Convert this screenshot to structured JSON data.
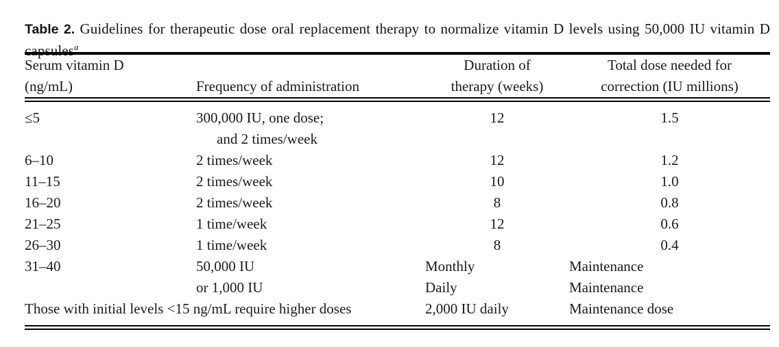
{
  "caption": {
    "label": "Table 2.",
    "text": "Guidelines for therapeutic dose oral replacement therapy to normalize vitamin D levels using 50,000 IU vitamin D capsules",
    "footnote_marker": "a"
  },
  "table": {
    "headers": [
      {
        "lines": [
          "Serum vitamin D",
          "(ng/mL)"
        ],
        "align": "left",
        "valign": "top"
      },
      {
        "lines": [
          "Frequency of administration"
        ],
        "align": "left",
        "valign": "bottom"
      },
      {
        "lines": [
          "Duration of",
          "therapy (weeks)"
        ],
        "align": "center",
        "valign": "top"
      },
      {
        "lines": [
          "Total dose needed for",
          "correction (IU millions)"
        ],
        "align": "center",
        "valign": "top"
      }
    ],
    "rows": [
      {
        "cells": [
          {
            "lines": [
              {
                "t": "≤5"
              }
            ]
          },
          {
            "lines": [
              {
                "t": "300,000 IU, one dose;"
              },
              {
                "t": "and 2 times/week",
                "indent": true
              }
            ]
          },
          {
            "lines": [
              {
                "t": "12"
              }
            ],
            "align": "center"
          },
          {
            "lines": [
              {
                "t": "1.5"
              }
            ],
            "align": "center"
          }
        ]
      },
      {
        "cells": [
          {
            "lines": [
              {
                "t": "6–10"
              }
            ]
          },
          {
            "lines": [
              {
                "t": "2 times/week"
              }
            ]
          },
          {
            "lines": [
              {
                "t": "12"
              }
            ],
            "align": "center"
          },
          {
            "lines": [
              {
                "t": "1.2"
              }
            ],
            "align": "center"
          }
        ]
      },
      {
        "cells": [
          {
            "lines": [
              {
                "t": "11–15"
              }
            ]
          },
          {
            "lines": [
              {
                "t": "2 times/week"
              }
            ]
          },
          {
            "lines": [
              {
                "t": "10"
              }
            ],
            "align": "center"
          },
          {
            "lines": [
              {
                "t": "1.0"
              }
            ],
            "align": "center"
          }
        ]
      },
      {
        "cells": [
          {
            "lines": [
              {
                "t": "16–20"
              }
            ]
          },
          {
            "lines": [
              {
                "t": "2 times/week"
              }
            ]
          },
          {
            "lines": [
              {
                "t": "8"
              }
            ],
            "align": "center"
          },
          {
            "lines": [
              {
                "t": "0.8"
              }
            ],
            "align": "center"
          }
        ]
      },
      {
        "cells": [
          {
            "lines": [
              {
                "t": "21–25"
              }
            ]
          },
          {
            "lines": [
              {
                "t": "1 time/week"
              }
            ]
          },
          {
            "lines": [
              {
                "t": "12"
              }
            ],
            "align": "center"
          },
          {
            "lines": [
              {
                "t": "0.6"
              }
            ],
            "align": "center"
          }
        ]
      },
      {
        "cells": [
          {
            "lines": [
              {
                "t": "26–30"
              }
            ]
          },
          {
            "lines": [
              {
                "t": "1 time/week"
              }
            ]
          },
          {
            "lines": [
              {
                "t": "8"
              }
            ],
            "align": "center"
          },
          {
            "lines": [
              {
                "t": "0.4"
              }
            ],
            "align": "center"
          }
        ]
      },
      {
        "cells": [
          {
            "lines": [
              {
                "t": "31–40"
              }
            ]
          },
          {
            "lines": [
              {
                "t": "50,000 IU"
              },
              {
                "t": "or 1,000 IU"
              }
            ]
          },
          {
            "lines": [
              {
                "t": "Monthly"
              },
              {
                "t": "Daily"
              }
            ],
            "align": "left-inset"
          },
          {
            "lines": [
              {
                "t": "Maintenance"
              },
              {
                "t": "Maintenance"
              }
            ],
            "align": "left-inset"
          }
        ]
      },
      {
        "cells": [
          {
            "lines": [
              {
                "t": "Those with initial levels <15 ng/mL require higher doses"
              }
            ],
            "colspan": 2
          },
          {
            "lines": [
              {
                "t": "2,000 IU daily"
              }
            ],
            "align": "left-inset"
          },
          {
            "lines": [
              {
                "t": "Maintenance dose"
              }
            ],
            "align": "left-inset"
          }
        ]
      }
    ]
  }
}
